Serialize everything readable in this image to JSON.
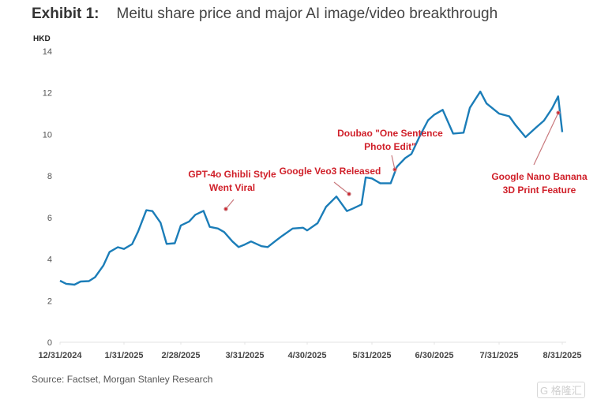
{
  "header": {
    "exhibit": "Exhibit 1:",
    "title": "Meitu share price and major AI image/video breakthrough"
  },
  "footer": {
    "source": "Source: Factset, Morgan Stanley Research",
    "watermark": "G 格隆汇"
  },
  "colors": {
    "line": "#1b7db8",
    "annotation": "#d0202a",
    "arrow": "#c9797d",
    "axis": "#e3e3e3"
  },
  "chart_data": {
    "type": "line",
    "title": "Meitu share price and major AI image/video breakthrough",
    "xlabel": "",
    "ylabel": "HKD",
    "ylim": [
      0,
      14
    ],
    "yticks": [
      "0",
      "2",
      "4",
      "6",
      "8",
      "10",
      "12",
      "14"
    ],
    "xticks": [
      "12/31/2024",
      "1/31/2025",
      "2/28/2025",
      "3/31/2025",
      "4/30/2025",
      "5/31/2025",
      "6/30/2025",
      "7/31/2025",
      "8/31/2025"
    ],
    "grid": false,
    "legend": "none",
    "series": [
      {
        "name": "Meitu share price (HKD)",
        "x": [
          "12/31/2024",
          "1/3/2025",
          "1/7/2025",
          "1/10/2025",
          "1/14/2025",
          "1/17/2025",
          "1/21/2025",
          "1/24/2025",
          "1/28/2025",
          "1/31/2025",
          "2/4/2025",
          "2/7/2025",
          "2/11/2025",
          "2/14/2025",
          "2/18/2025",
          "2/21/2025",
          "2/25/2025",
          "2/28/2025",
          "3/4/2025",
          "3/7/2025",
          "3/11/2025",
          "3/14/2025",
          "3/18/2025",
          "3/21/2025",
          "3/25/2025",
          "3/28/2025",
          "3/31/2025",
          "4/3/2025",
          "4/8/2025",
          "4/11/2025",
          "4/15/2025",
          "4/18/2025",
          "4/23/2025",
          "4/28/2025",
          "4/30/2025",
          "5/5/2025",
          "5/9/2025",
          "5/14/2025",
          "5/19/2025",
          "5/22/2025",
          "5/26/2025",
          "5/28/2025",
          "5/31/2025",
          "6/4/2025",
          "6/9/2025",
          "6/12/2025",
          "6/16/2025",
          "6/19/2025",
          "6/23/2025",
          "6/27/2025",
          "6/30/2025",
          "7/4/2025",
          "7/9/2025",
          "7/14/2025",
          "7/17/2025",
          "7/22/2025",
          "7/25/2025",
          "7/31/2025",
          "8/5/2025",
          "8/8/2025",
          "8/13/2025",
          "8/18/2025",
          "8/22/2025",
          "8/26/2025",
          "8/29/2025",
          "8/31/2025"
        ],
        "values": [
          2.96,
          2.81,
          2.77,
          2.92,
          2.94,
          3.13,
          3.69,
          4.34,
          4.57,
          4.49,
          4.72,
          5.34,
          6.35,
          6.31,
          5.75,
          4.73,
          4.76,
          5.62,
          5.81,
          6.13,
          6.32,
          5.55,
          5.47,
          5.3,
          4.85,
          4.58,
          4.7,
          4.85,
          4.62,
          4.58,
          4.89,
          5.12,
          5.47,
          5.51,
          5.38,
          5.73,
          6.51,
          7.01,
          6.31,
          6.44,
          6.63,
          7.93,
          7.88,
          7.65,
          7.65,
          8.44,
          8.86,
          9.06,
          9.92,
          10.68,
          10.95,
          11.18,
          10.04,
          10.08,
          11.28,
          12.06,
          11.49,
          11.0,
          10.87,
          10.46,
          9.87,
          10.32,
          10.66,
          11.25,
          11.83,
          10.11
        ]
      }
    ],
    "annotations": [
      {
        "label_line1": "GPT-4o Ghibli Style",
        "label_line2": "Went Viral",
        "date": "3/20/2025"
      },
      {
        "label_line1": "Google Veo3 Released",
        "label_line2": "",
        "date": "5/21/2025"
      },
      {
        "label_line1": "Doubao \"One Sentence",
        "label_line2": "Photo Edit\"",
        "date": "6/9/2025"
      },
      {
        "label_line1": "Google Nano Banana",
        "label_line2": "3D Print Feature",
        "date": "8/26/2025"
      }
    ]
  }
}
